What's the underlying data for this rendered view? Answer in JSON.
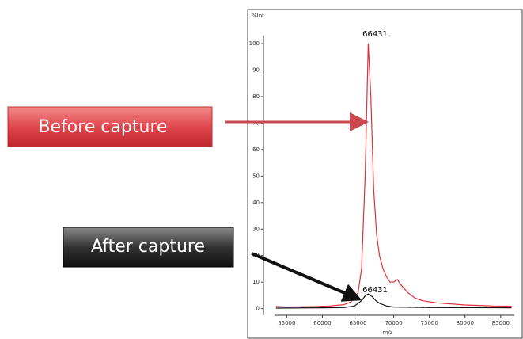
{
  "chart_data": {
    "type": "line",
    "y_label": "%Int.",
    "x_label": "m/z",
    "xlim": [
      53300,
      86900
    ],
    "ylim": [
      -2.5,
      103
    ],
    "xticks": [
      55000,
      60000,
      65000,
      70000,
      75000,
      80000,
      85000
    ],
    "yticks": [
      0,
      10,
      20,
      30,
      40,
      50,
      60,
      70,
      80,
      90,
      100
    ],
    "peak_labels": [
      "66431",
      "66431"
    ],
    "series": [
      {
        "name": "Before capture",
        "color": "#e0303a",
        "x": [
          53500,
          55000,
          57000,
          59000,
          61000,
          63000,
          64000,
          65000,
          65500,
          66000,
          66431,
          66800,
          67200,
          67600,
          68000,
          68500,
          69000,
          69500,
          70000,
          70500,
          71000,
          72000,
          73000,
          74000,
          76000,
          78000,
          80000,
          82000,
          84000,
          86500
        ],
        "values": [
          0.8,
          0.6,
          0.7,
          0.8,
          1,
          1.5,
          2.5,
          6,
          15,
          50,
          100,
          80,
          45,
          28,
          20,
          15,
          12,
          10,
          10,
          11,
          9,
          6,
          4,
          3,
          2.2,
          1.8,
          1.4,
          1.2,
          1,
          0.9
        ]
      },
      {
        "name": "After capture",
        "color": "#111111",
        "x": [
          53500,
          60000,
          63000,
          64500,
          65500,
          66000,
          66431,
          67000,
          67500,
          68000,
          69000,
          70000,
          75000,
          86500
        ],
        "values": [
          0.2,
          0.3,
          0.4,
          1,
          3,
          4.8,
          5.5,
          4.5,
          3,
          2,
          1,
          0.6,
          0.4,
          0.3
        ]
      }
    ]
  }
}
